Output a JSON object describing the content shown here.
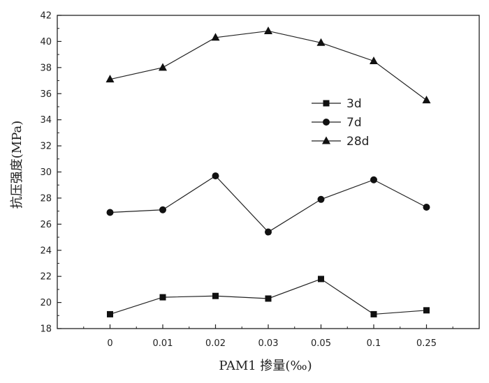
{
  "chart_data": {
    "type": "line",
    "xlabel": "PAM1 掺量(‰)",
    "ylabel": "抗压强度(MPa)",
    "categories": [
      "0",
      "0.01",
      "0.02",
      "0.03",
      "0.05",
      "0.1",
      "0.25"
    ],
    "ylim": [
      18,
      42
    ],
    "yticks": [
      "18",
      "20",
      "22",
      "24",
      "26",
      "28",
      "30",
      "32",
      "34",
      "36",
      "38",
      "40",
      "42"
    ],
    "grid": false,
    "legend_position": "center-right",
    "series": [
      {
        "name": "3d",
        "marker": "square",
        "values": [
          19.1,
          20.4,
          20.5,
          20.3,
          21.8,
          19.1,
          19.4
        ]
      },
      {
        "name": "7d",
        "marker": "circle",
        "values": [
          26.9,
          27.1,
          29.7,
          25.4,
          27.9,
          29.4,
          27.3
        ]
      },
      {
        "name": "28d",
        "marker": "triangle",
        "values": [
          37.1,
          38.0,
          40.3,
          40.8,
          39.9,
          38.5,
          35.5
        ]
      }
    ]
  }
}
